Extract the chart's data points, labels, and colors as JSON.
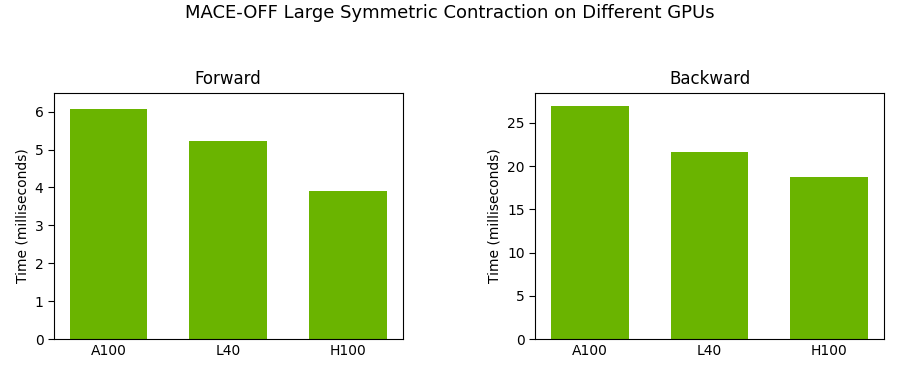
{
  "title": "MACE-OFF Large Symmetric Contraction on Different GPUs",
  "panels": [
    {
      "subtitle": "Forward",
      "categories": [
        "A100",
        "L40",
        "H100"
      ],
      "values": [
        6.07,
        5.22,
        3.9
      ],
      "ylabel": "Time (milliseconds)",
      "ylim": [
        0,
        6.5
      ],
      "yticks": [
        0,
        1,
        2,
        3,
        4,
        5,
        6
      ]
    },
    {
      "subtitle": "Backward",
      "categories": [
        "A100",
        "L40",
        "H100"
      ],
      "values": [
        27.0,
        21.7,
        18.7
      ],
      "ylabel": "Time (milliseconds)",
      "ylim": [
        0,
        28.5
      ],
      "yticks": [
        0,
        5,
        10,
        15,
        20,
        25
      ]
    }
  ],
  "bar_color": "#6ab400",
  "title_fontsize": 13,
  "subtitle_fontsize": 12,
  "label_fontsize": 10,
  "tick_fontsize": 10,
  "bar_width": 0.65
}
